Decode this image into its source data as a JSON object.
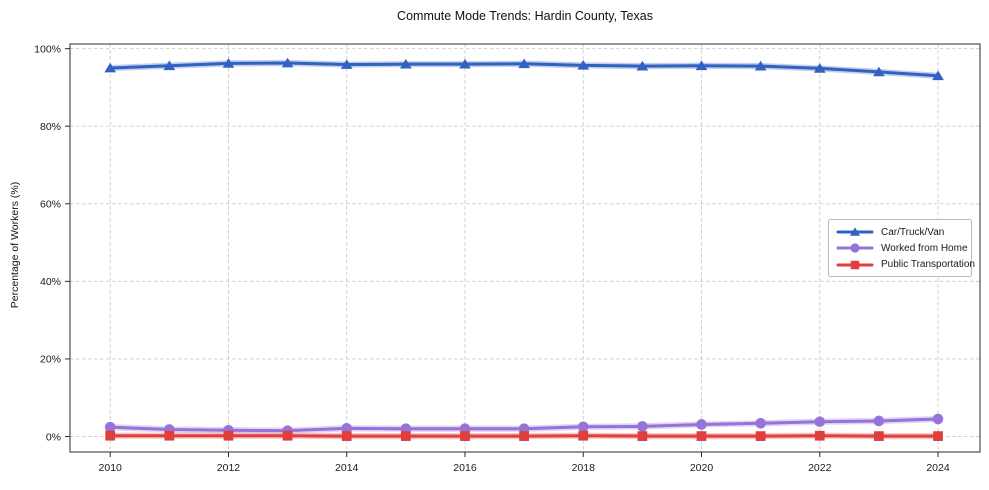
{
  "page": {
    "background": "#ffffff"
  },
  "chart_data": {
    "type": "line",
    "title": "Commute Mode Trends: Hardin County, Texas",
    "xlabel": "",
    "ylabel": "Percentage of Workers (%)",
    "x": [
      2010,
      2011,
      2012,
      2013,
      2014,
      2015,
      2016,
      2017,
      2018,
      2019,
      2020,
      2021,
      2022,
      2023,
      2024
    ],
    "series": [
      {
        "name": "Car/Truck/Van",
        "color": "#3161c1",
        "marker": "triangle",
        "values": [
          95.0,
          95.6,
          96.2,
          96.3,
          95.9,
          96.0,
          96.0,
          96.1,
          95.7,
          95.5,
          95.6,
          95.5,
          94.9,
          94.0,
          93.0
        ]
      },
      {
        "name": "Worked from Home",
        "color": "#9673d8",
        "marker": "circle",
        "values": [
          2.4,
          1.8,
          1.6,
          1.5,
          2.1,
          2.0,
          2.0,
          2.0,
          2.5,
          2.6,
          3.1,
          3.4,
          3.8,
          4.0,
          4.5
        ]
      },
      {
        "name": "Public Transportation",
        "color": "#e03e3e",
        "marker": "square",
        "values": [
          0.2,
          0.2,
          0.2,
          0.2,
          0.1,
          0.1,
          0.1,
          0.1,
          0.2,
          0.1,
          0.1,
          0.1,
          0.2,
          0.1,
          0.1
        ]
      }
    ],
    "xticks": {
      "values": [
        2010,
        2012,
        2014,
        2016,
        2018,
        2020,
        2022,
        2024
      ],
      "labels": [
        "2010",
        "2012",
        "2014",
        "2016",
        "2018",
        "2020",
        "2022",
        "2024"
      ]
    },
    "yticks": {
      "values": [
        0,
        20,
        40,
        60,
        80,
        100
      ],
      "labels": [
        "0%",
        "20%",
        "40%",
        "60%",
        "80%",
        "100%"
      ]
    },
    "xlim": [
      2009.32,
      2024.71
    ],
    "ylim": [
      -4,
      101.2
    ],
    "grid": true,
    "grid_style": "dashed",
    "grid_color": "#c9c9c9",
    "spine_color": "#2a2a2a",
    "legend": {
      "position": "center-right",
      "border_color": "#bbbbbb"
    }
  }
}
